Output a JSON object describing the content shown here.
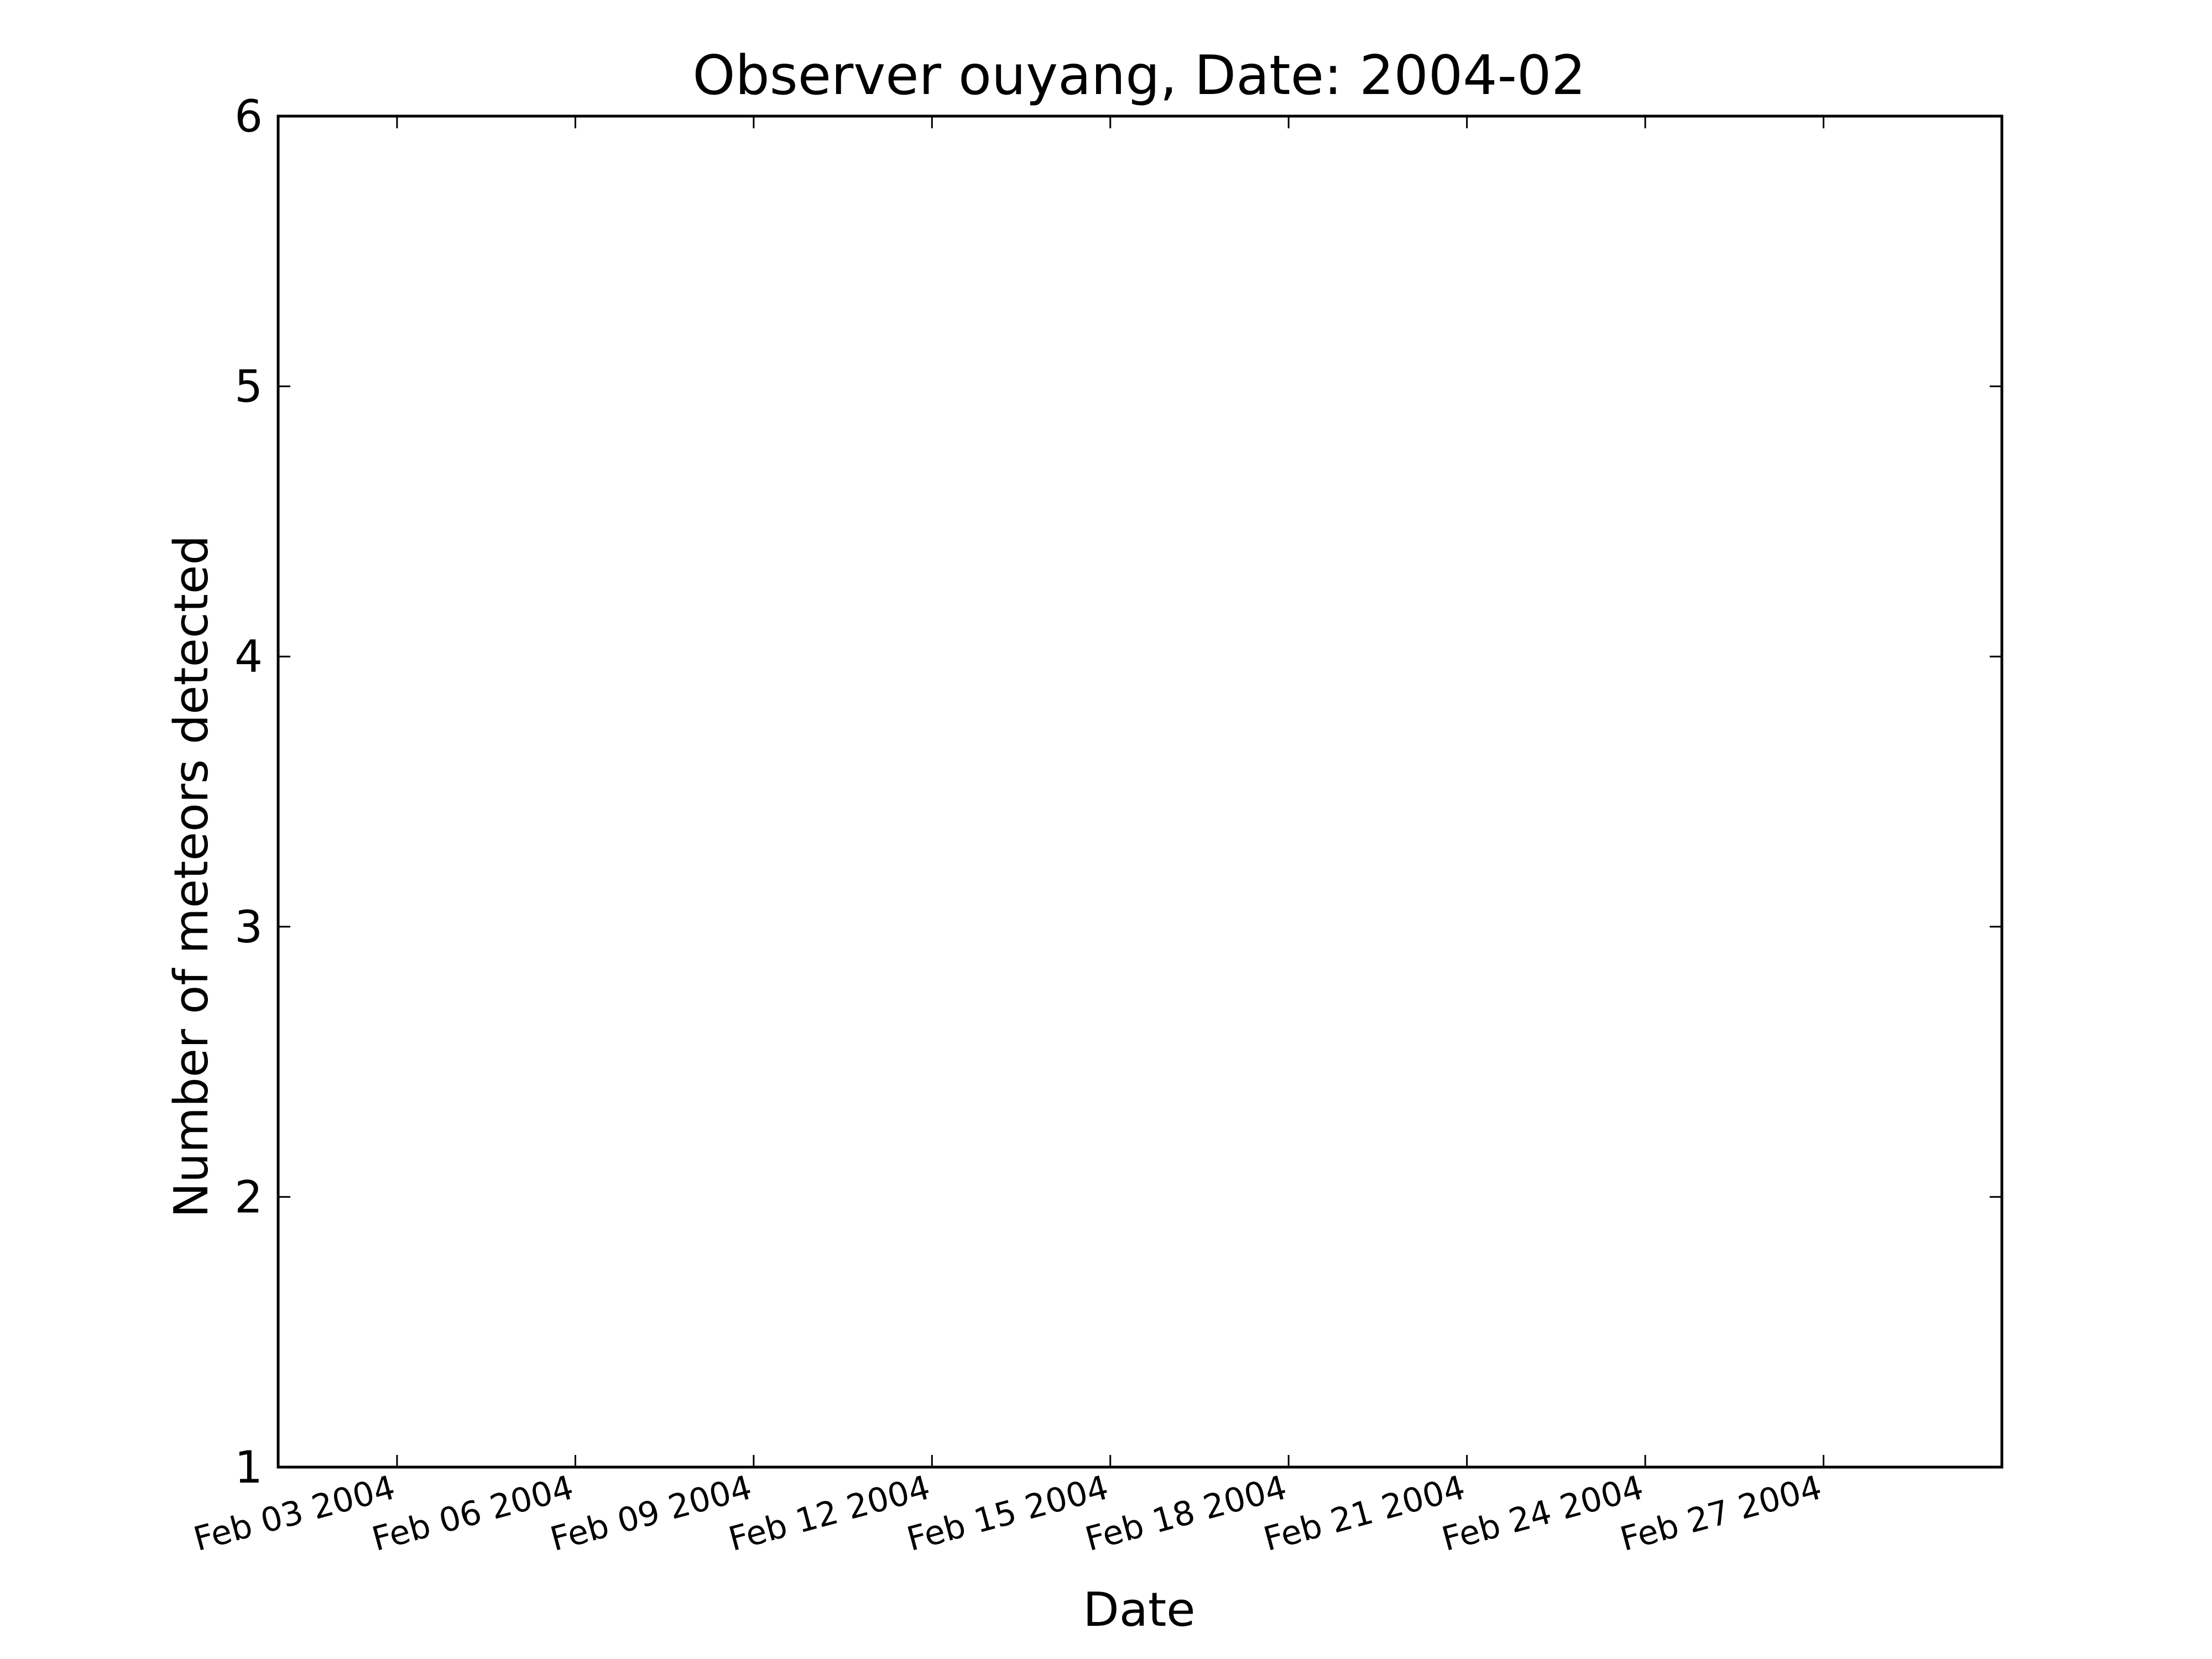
{
  "chart_data": {
    "type": "line",
    "title": "Observer ouyang, Date: 2004-02",
    "xlabel": "Date",
    "ylabel": "Number of meteors detected",
    "x_type": "date",
    "xlim": [
      "2004-02-01",
      "2004-03-01"
    ],
    "ylim": [
      1,
      6
    ],
    "x_ticks": [
      {
        "date": "2004-02-03",
        "label": "Feb 03 2004"
      },
      {
        "date": "2004-02-06",
        "label": "Feb 06 2004"
      },
      {
        "date": "2004-02-09",
        "label": "Feb 09 2004"
      },
      {
        "date": "2004-02-12",
        "label": "Feb 12 2004"
      },
      {
        "date": "2004-02-15",
        "label": "Feb 15 2004"
      },
      {
        "date": "2004-02-18",
        "label": "Feb 18 2004"
      },
      {
        "date": "2004-02-21",
        "label": "Feb 21 2004"
      },
      {
        "date": "2004-02-24",
        "label": "Feb 24 2004"
      },
      {
        "date": "2004-02-27",
        "label": "Feb 27 2004"
      }
    ],
    "y_ticks": [
      1,
      2,
      3,
      4,
      5,
      6
    ],
    "series": [],
    "grid": false,
    "legend": "none"
  }
}
